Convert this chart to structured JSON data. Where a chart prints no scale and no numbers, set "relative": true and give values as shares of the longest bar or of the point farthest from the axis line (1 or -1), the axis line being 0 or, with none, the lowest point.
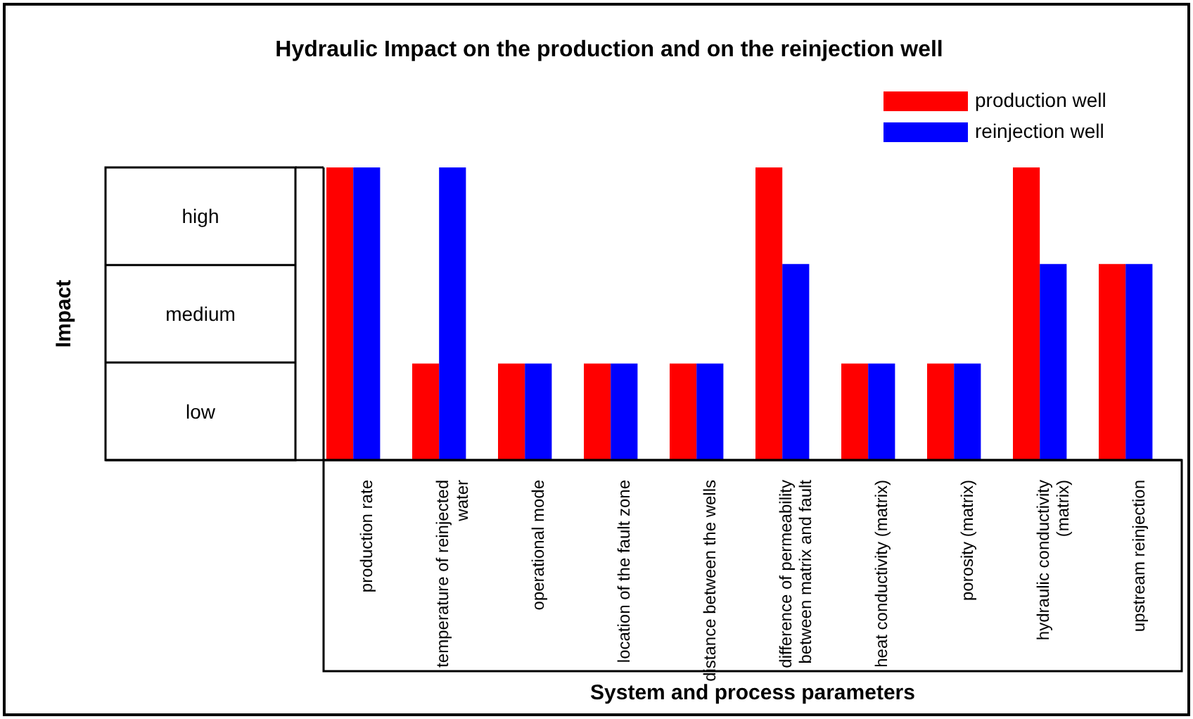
{
  "chart_data": {
    "type": "bar",
    "title": "Hydraulic Impact on the production and on the reinjection well",
    "xlabel": "System and process parameters",
    "relative": true,
    "categories": [
      "production rate",
      "temperature of reinjected water",
      "operational mode",
      "location of the fault zone",
      "distance between the wells",
      "difference of permeability between matrix and fault",
      "heat conductivity (matrix)",
      "porosity (matrix)",
      "hydraulic conductivity (matrix)",
      "upstream reinjection"
    ],
    "series": [
      {
        "name": "production well",
        "color": "#ff0000",
        "values": [
          1,
          0.33,
          0.33,
          0.33,
          0.33,
          1,
          0.33,
          0.33,
          1,
          0.67
        ]
      },
      {
        "name": "reinjection well",
        "color": "#0000ff",
        "values": [
          1,
          1,
          0.33,
          0.33,
          0.33,
          0.67,
          0.33,
          0.33,
          0.67,
          0.67
        ]
      }
    ],
    "annotations": [
      "Impact",
      "high",
      "medium",
      "low"
    ],
    "legend": "top right"
  }
}
